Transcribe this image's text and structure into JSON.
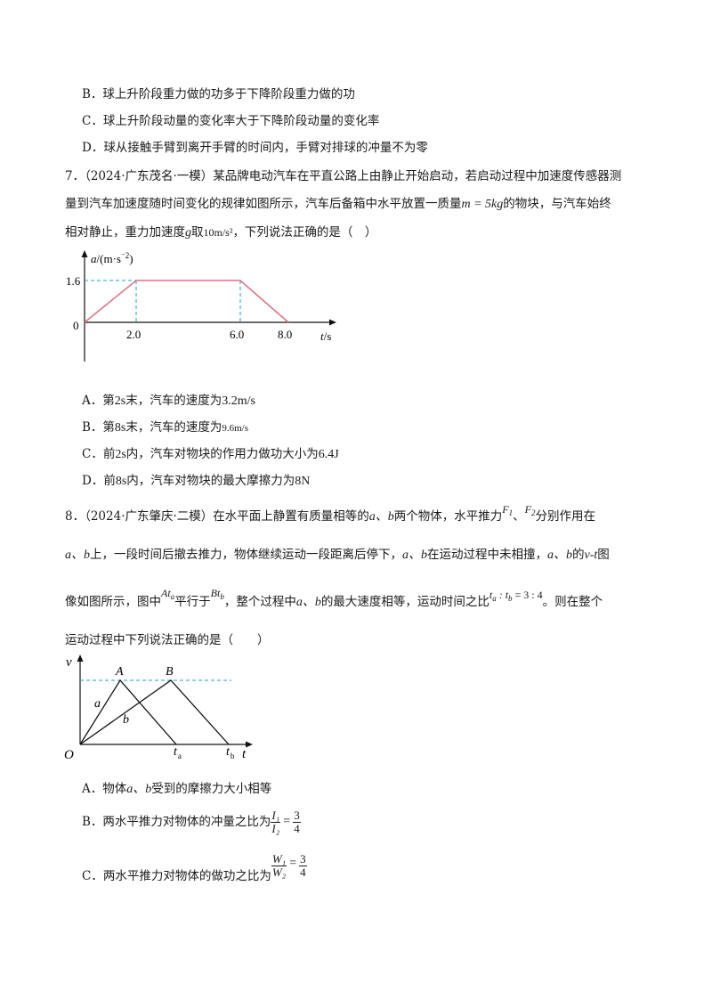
{
  "q6": {
    "optB": "B．球上升阶段重力做的功多于下降阶段重力做的功",
    "optC": "C．球上升阶段动量的变化率大于下降阶段动量的变化率",
    "optD": "D．球从接触手臂到离开手臂的时间内，手臂对排球的冲量不为零"
  },
  "q7": {
    "line1": "7．（2024·广东茂名·一模）某品牌电动汽车在平直公路上由静止开始启动，若启动过程中加速度传感器测",
    "line2_a": "量到汽车加速度随时间变化的规律如图所示，汽车后备箱中水平放置一质量",
    "line2_math": "m = 5kg",
    "line2_b": "的物块，与汽车始终",
    "line3_a": "相对静止，重力加速度",
    "line3_g": "g",
    "line3_b": "取",
    "line3_val": "10m/s²",
    "line3_c": "，下列说法正确的是（　）",
    "graph": {
      "y_label": "a/(m·s⁻²)",
      "t_label": "t/s",
      "origin": "0",
      "y_tick": "1.6",
      "x_ticks": [
        "2.0",
        "6.0",
        "8.0"
      ]
    },
    "optA_pre": "A．第",
    "optA_t": "2s",
    "optA_mid": "末，汽车的速度为",
    "optA_v": "3.2m/s",
    "optB_pre": "B．第",
    "optB_t": "8s",
    "optB_mid": "末，汽车的速度为",
    "optB_v": "9.6m/s",
    "optC_pre": "C．前",
    "optC_t": "2s",
    "optC_mid": "内，汽车对物块的作用力做功大小为",
    "optC_v": "6.4J",
    "optD_pre": "D．前",
    "optD_t": "8s",
    "optD_mid": "内，汽车对物块的最大摩擦力为",
    "optD_v": "8N"
  },
  "q8": {
    "line1_a": "8．（2024·广东肇庆·二模）在水平面上静置有质量相等的",
    "line1_ab": "a、b",
    "line1_b": "两个物体，水平推力",
    "line1_F1": "F",
    "line1_F2": "F",
    "line1_c": "、",
    "line1_d": "分别作用在",
    "line2_a": "a、b",
    "line2_b": "上，一段时间后撤去推力，物体继续运动一段距离后停下，",
    "line2_c": "a、b",
    "line2_d": "在运动过程中未相撞，",
    "line2_e": "a、b",
    "line2_f": "的",
    "line2_g": "v-t",
    "line2_h": "图",
    "line3_a": "像如图所示，图中",
    "line3_At": "At",
    "line3_b": "平行于",
    "line3_Bt": "Bt",
    "line3_c": "，整个过程中",
    "line3_ab": "a、b",
    "line3_d": "的最大速度相等，运动时间之比",
    "line3_ratio": "t",
    "line3_ratio_b": "= 3 : 4",
    "line3_e": "。则在整个",
    "line4": "运动过程中下列说法正确的是（　　）",
    "graph": {
      "v_label": "v",
      "t_label": "t",
      "origin": "O",
      "A": "A",
      "B": "B",
      "a": "a",
      "b": "b",
      "ta": "t",
      "tb": "t",
      "ta_sub": "a",
      "tb_sub": "b"
    },
    "optA_a": "A．物体",
    "optA_ab": "a、b",
    "optA_b": "受到的摩擦力大小相等",
    "optB_a": "B．两水平推力对物体的冲量之比为",
    "optB_num": "I₁",
    "optB_den": "I₂",
    "optB_val_num": "3",
    "optB_val_den": "4",
    "optC_a": "C．两水平推力对物体的做功之比为",
    "optC_num": "W₁",
    "optC_den": "W₂",
    "optC_val_num": "3",
    "optC_val_den": "4"
  }
}
